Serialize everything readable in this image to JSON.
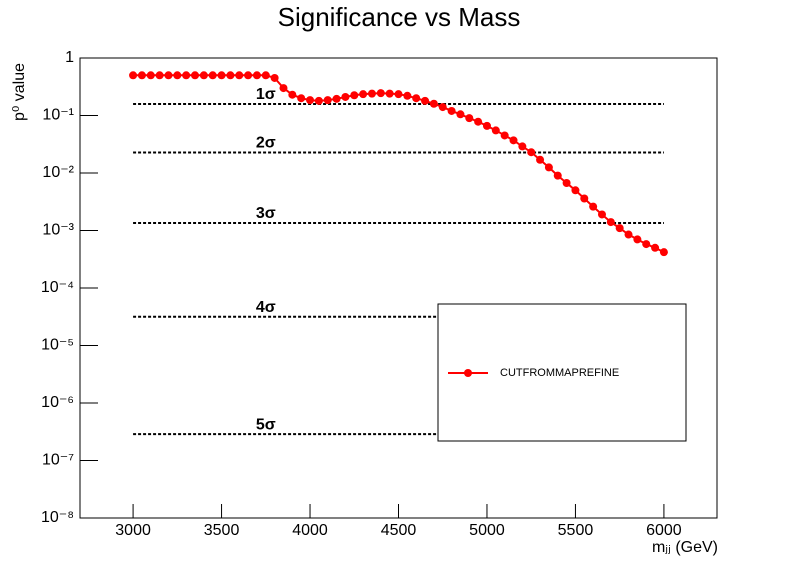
{
  "chart_data": {
    "type": "line",
    "title": "Significance vs Mass",
    "x_label": "mⱼⱼ (GeV)",
    "y_label": "p⁰ value",
    "log_y": true,
    "xlim": [
      2700,
      6300
    ],
    "ylim": [
      1e-08,
      1
    ],
    "xticks": [
      3000,
      3500,
      4000,
      4500,
      5000,
      5500,
      6000
    ],
    "yticks": [
      {
        "value": 1,
        "label": "1"
      },
      {
        "value": 0.1,
        "label": "10⁻¹"
      },
      {
        "value": 0.01,
        "label": "10⁻²"
      },
      {
        "value": 0.001,
        "label": "10⁻³"
      },
      {
        "value": 0.0001,
        "label": "10⁻⁴"
      },
      {
        "value": 1e-05,
        "label": "10⁻⁵"
      },
      {
        "value": 1e-06,
        "label": "10⁻⁶"
      },
      {
        "value": 1e-07,
        "label": "10⁻⁷"
      },
      {
        "value": 1e-08,
        "label": "10⁻⁸"
      }
    ],
    "annotations": [
      {
        "label": "1σ",
        "value": 0.1587
      },
      {
        "label": "2σ",
        "value": 0.02275
      },
      {
        "label": "3σ",
        "value": 0.00135
      },
      {
        "label": "4σ",
        "value": 3.17e-05
      },
      {
        "label": "5σ",
        "value": 2.87e-07
      }
    ],
    "x": [
      3000,
      3050,
      3100,
      3150,
      3200,
      3250,
      3300,
      3350,
      3400,
      3450,
      3500,
      3550,
      3600,
      3650,
      3700,
      3750,
      3800,
      3850,
      3900,
      3950,
      4000,
      4050,
      4100,
      4150,
      4200,
      4250,
      4300,
      4350,
      4400,
      4450,
      4500,
      4550,
      4600,
      4650,
      4700,
      4750,
      4800,
      4850,
      4900,
      4950,
      5000,
      5050,
      5100,
      5150,
      5200,
      5250,
      5300,
      5350,
      5400,
      5450,
      5500,
      5550,
      5600,
      5650,
      5700,
      5750,
      5800,
      5850,
      5900,
      5950,
      6000
    ],
    "series": [
      {
        "name": "CUTFROMMAPREFINE",
        "color": "#ff0000",
        "values": [
          0.5,
          0.5,
          0.5,
          0.5,
          0.5,
          0.5,
          0.5,
          0.5,
          0.5,
          0.5,
          0.5,
          0.5,
          0.5,
          0.5,
          0.5,
          0.5,
          0.45,
          0.3,
          0.23,
          0.2,
          0.185,
          0.18,
          0.185,
          0.195,
          0.21,
          0.225,
          0.235,
          0.24,
          0.245,
          0.24,
          0.235,
          0.22,
          0.2,
          0.18,
          0.16,
          0.14,
          0.12,
          0.105,
          0.09,
          0.078,
          0.066,
          0.055,
          0.045,
          0.037,
          0.029,
          0.023,
          0.017,
          0.0125,
          0.009,
          0.0067,
          0.005,
          0.0036,
          0.0026,
          0.0019,
          0.0014,
          0.0011,
          0.00085,
          0.0007,
          0.00058,
          0.0005,
          0.00042
        ]
      }
    ]
  }
}
